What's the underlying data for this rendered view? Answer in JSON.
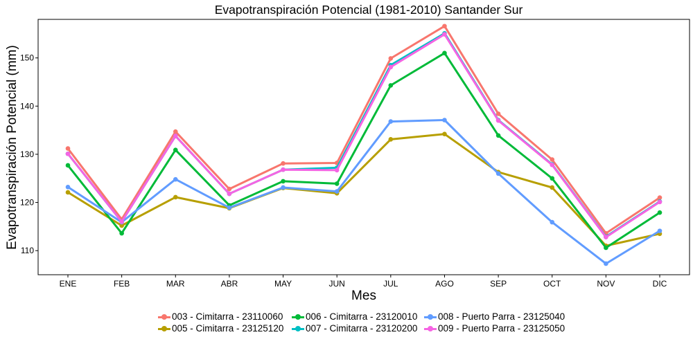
{
  "chart_data": {
    "type": "line",
    "title": "Evapotranspiración Potencial (1981-2010)  Santander Sur",
    "xlabel": "Mes",
    "ylabel": "Evapotranspiración Potencial  (mm)",
    "categories": [
      "ENE",
      "FEB",
      "MAR",
      "ABR",
      "MAY",
      "JUN",
      "JUL",
      "AGO",
      "SEP",
      "OCT",
      "NOV",
      "DIC"
    ],
    "ylim": [
      105,
      158
    ],
    "yticks": [
      110,
      120,
      130,
      140,
      150
    ],
    "grid": false,
    "legend_position": "bottom",
    "series": [
      {
        "name": "003 - Cimitarra - 23110060",
        "color": "#F8766D",
        "values": [
          131.2,
          116.5,
          134.7,
          122.8,
          128.1,
          128.2,
          149.9,
          156.6,
          138.4,
          128.9,
          113.6,
          121.0
        ]
      },
      {
        "name": "005 - Cimitarra - 23125120",
        "color": "#B79F00",
        "values": [
          122.1,
          115.2,
          121.1,
          118.8,
          123.0,
          121.9,
          133.1,
          134.2,
          126.3,
          123.1,
          111.0,
          113.5
        ]
      },
      {
        "name": "006 - Cimitarra - 23120010",
        "color": "#00BA38",
        "values": [
          127.7,
          113.6,
          130.9,
          119.4,
          124.4,
          123.9,
          144.3,
          151.0,
          133.9,
          125.0,
          110.6,
          117.9
        ]
      },
      {
        "name": "007 - Cimitarra - 23120200",
        "color": "#00BFC4",
        "values": [
          130.1,
          116.0,
          133.8,
          121.8,
          126.8,
          127.2,
          148.5,
          155.1,
          137.1,
          127.9,
          112.9,
          120.2
        ]
      },
      {
        "name": "008 - Puerto Parra - 23125040",
        "color": "#619CFF",
        "values": [
          123.2,
          115.9,
          124.8,
          118.9,
          123.1,
          122.3,
          136.8,
          137.1,
          126.0,
          115.9,
          107.3,
          114.1
        ]
      },
      {
        "name": "009 - Puerto Parra - 23125050",
        "color": "#F564E3",
        "values": [
          130.1,
          116.0,
          133.8,
          121.8,
          126.8,
          126.7,
          148.1,
          154.9,
          137.0,
          127.8,
          112.8,
          120.1
        ]
      }
    ]
  }
}
